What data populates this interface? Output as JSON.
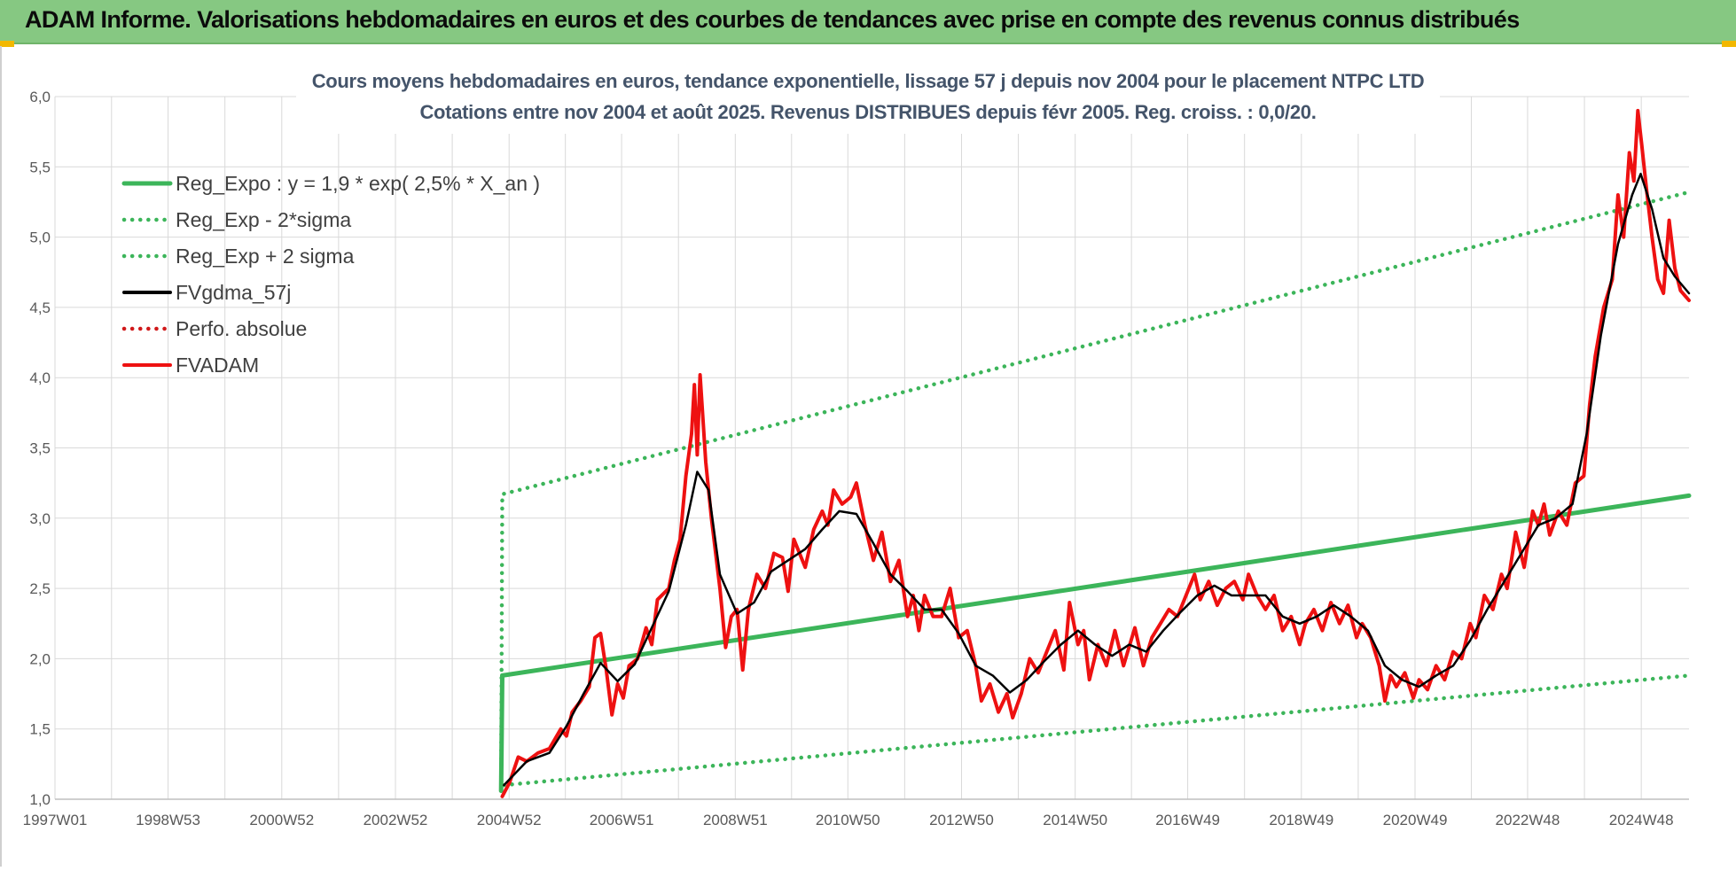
{
  "banner": {
    "title": "ADAM Informe. Valorisations hebdomadaires en euros et des courbes de tendances avec prise en compte des revenus connus distribués"
  },
  "colors": {
    "banner_bg": "#86c882",
    "regression": "#3cb55a",
    "fv_adam": "#ee1111",
    "smoothed": "#000000",
    "perfo": "#d0191a"
  },
  "chart_data": {
    "type": "line",
    "title_line1": "Cours moyens hebdomadaires en euros, tendance exponentielle, lissage 57 j depuis nov 2004 pour le placement NTPC LTD",
    "title_line2": "Cotations entre nov 2004 et août 2025.  Revenus DISTRIBUES depuis févr 2005.  Reg. croiss. : 0,0/20.",
    "xlim": [
      1997.0,
      2025.75
    ],
    "ylim": [
      1.0,
      6.0
    ],
    "x_ticks": [
      {
        "x": 1997.0,
        "label": "1997W01"
      },
      {
        "x": 1998.99,
        "label": "1998W53"
      },
      {
        "x": 2000.99,
        "label": "2000W52"
      },
      {
        "x": 2002.99,
        "label": "2002W52"
      },
      {
        "x": 2004.99,
        "label": "2004W52"
      },
      {
        "x": 2006.97,
        "label": "2006W51"
      },
      {
        "x": 2008.97,
        "label": "2008W51"
      },
      {
        "x": 2010.95,
        "label": "2010W50"
      },
      {
        "x": 2012.95,
        "label": "2012W50"
      },
      {
        "x": 2014.95,
        "label": "2014W50"
      },
      {
        "x": 2016.93,
        "label": "2016W49"
      },
      {
        "x": 2018.93,
        "label": "2018W49"
      },
      {
        "x": 2020.93,
        "label": "2020W49"
      },
      {
        "x": 2022.91,
        "label": "2022W48"
      },
      {
        "x": 2024.91,
        "label": "2024W48"
      }
    ],
    "y_ticks": [
      {
        "y": 1.0,
        "label": "1,0"
      },
      {
        "y": 1.5,
        "label": "1,5"
      },
      {
        "y": 2.0,
        "label": "2,0"
      },
      {
        "y": 2.5,
        "label": "2,5"
      },
      {
        "y": 3.0,
        "label": "3,0"
      },
      {
        "y": 3.5,
        "label": "3,5"
      },
      {
        "y": 4.0,
        "label": "4,0"
      },
      {
        "y": 4.5,
        "label": "4,5"
      },
      {
        "y": 5.0,
        "label": "5,0"
      },
      {
        "y": 5.5,
        "label": "5,5"
      },
      {
        "y": 6.0,
        "label": "6,0"
      }
    ],
    "legend_position": "top-left",
    "grid": true,
    "series": [
      {
        "name": "Reg_Expo : y = 1,9 * exp( 2,5% *  X_an )",
        "style": "solid-thick",
        "color": "#3cb55a",
        "points": [
          [
            2004.85,
            1.06
          ],
          [
            2004.87,
            1.88
          ],
          [
            2025.75,
            3.16
          ]
        ]
      },
      {
        "name": "Reg_Exp - 2*sigma",
        "style": "dotted",
        "color": "#3cb55a",
        "points": [
          [
            2004.9,
            1.1
          ],
          [
            2025.75,
            1.88
          ]
        ]
      },
      {
        "name": "Reg_Exp + 2 sigma",
        "style": "dotted",
        "color": "#3cb55a",
        "points": [
          [
            2004.85,
            1.06
          ],
          [
            2004.87,
            3.17
          ],
          [
            2025.75,
            5.32
          ]
        ]
      },
      {
        "name": "FVgdma_57j",
        "style": "solid",
        "color": "#000000",
        "points": [
          [
            2004.9,
            1.1
          ],
          [
            2005.3,
            1.27
          ],
          [
            2005.7,
            1.33
          ],
          [
            2006.0,
            1.52
          ],
          [
            2006.3,
            1.75
          ],
          [
            2006.6,
            1.97
          ],
          [
            2006.9,
            1.84
          ],
          [
            2007.2,
            1.96
          ],
          [
            2007.5,
            2.22
          ],
          [
            2007.8,
            2.48
          ],
          [
            2008.1,
            2.95
          ],
          [
            2008.3,
            3.33
          ],
          [
            2008.5,
            3.2
          ],
          [
            2008.7,
            2.6
          ],
          [
            2009.0,
            2.32
          ],
          [
            2009.3,
            2.4
          ],
          [
            2009.6,
            2.62
          ],
          [
            2009.9,
            2.7
          ],
          [
            2010.2,
            2.78
          ],
          [
            2010.5,
            2.92
          ],
          [
            2010.8,
            3.05
          ],
          [
            2011.1,
            3.03
          ],
          [
            2011.4,
            2.82
          ],
          [
            2011.7,
            2.6
          ],
          [
            2012.0,
            2.48
          ],
          [
            2012.3,
            2.35
          ],
          [
            2012.6,
            2.35
          ],
          [
            2012.9,
            2.18
          ],
          [
            2013.2,
            1.95
          ],
          [
            2013.5,
            1.88
          ],
          [
            2013.8,
            1.76
          ],
          [
            2014.1,
            1.85
          ],
          [
            2014.4,
            1.98
          ],
          [
            2014.7,
            2.1
          ],
          [
            2015.0,
            2.2
          ],
          [
            2015.3,
            2.1
          ],
          [
            2015.6,
            2.02
          ],
          [
            2015.9,
            2.1
          ],
          [
            2016.2,
            2.05
          ],
          [
            2016.5,
            2.2
          ],
          [
            2016.8,
            2.33
          ],
          [
            2017.1,
            2.45
          ],
          [
            2017.4,
            2.52
          ],
          [
            2017.7,
            2.45
          ],
          [
            2018.0,
            2.45
          ],
          [
            2018.3,
            2.45
          ],
          [
            2018.6,
            2.3
          ],
          [
            2018.9,
            2.25
          ],
          [
            2019.2,
            2.3
          ],
          [
            2019.5,
            2.38
          ],
          [
            2019.8,
            2.3
          ],
          [
            2020.1,
            2.2
          ],
          [
            2020.4,
            1.95
          ],
          [
            2020.7,
            1.85
          ],
          [
            2021.0,
            1.8
          ],
          [
            2021.3,
            1.88
          ],
          [
            2021.6,
            1.95
          ],
          [
            2021.9,
            2.13
          ],
          [
            2022.2,
            2.35
          ],
          [
            2022.5,
            2.55
          ],
          [
            2022.8,
            2.75
          ],
          [
            2023.1,
            2.95
          ],
          [
            2023.4,
            3.0
          ],
          [
            2023.7,
            3.1
          ],
          [
            2023.95,
            3.6
          ],
          [
            2024.2,
            4.3
          ],
          [
            2024.5,
            4.95
          ],
          [
            2024.75,
            5.3
          ],
          [
            2024.9,
            5.45
          ],
          [
            2025.1,
            5.2
          ],
          [
            2025.3,
            4.85
          ],
          [
            2025.5,
            4.72
          ],
          [
            2025.75,
            4.6
          ]
        ]
      },
      {
        "name": "Perfo. absolue",
        "style": "dotted",
        "color": "#d0191a",
        "points": []
      },
      {
        "name": "FVADAM",
        "style": "solid-thick",
        "color": "#ee1111",
        "points": [
          [
            2004.87,
            1.02
          ],
          [
            2005.0,
            1.12
          ],
          [
            2005.15,
            1.3
          ],
          [
            2005.3,
            1.27
          ],
          [
            2005.5,
            1.33
          ],
          [
            2005.7,
            1.36
          ],
          [
            2005.9,
            1.5
          ],
          [
            2006.0,
            1.45
          ],
          [
            2006.1,
            1.62
          ],
          [
            2006.25,
            1.7
          ],
          [
            2006.4,
            1.8
          ],
          [
            2006.5,
            2.15
          ],
          [
            2006.6,
            2.18
          ],
          [
            2006.7,
            1.92
          ],
          [
            2006.8,
            1.6
          ],
          [
            2006.9,
            1.82
          ],
          [
            2007.0,
            1.72
          ],
          [
            2007.1,
            1.95
          ],
          [
            2007.25,
            2.0
          ],
          [
            2007.4,
            2.22
          ],
          [
            2007.5,
            2.1
          ],
          [
            2007.6,
            2.42
          ],
          [
            2007.8,
            2.5
          ],
          [
            2007.9,
            2.7
          ],
          [
            2008.0,
            2.85
          ],
          [
            2008.1,
            3.3
          ],
          [
            2008.2,
            3.6
          ],
          [
            2008.25,
            3.95
          ],
          [
            2008.3,
            3.45
          ],
          [
            2008.35,
            4.02
          ],
          [
            2008.45,
            3.4
          ],
          [
            2008.55,
            3.0
          ],
          [
            2008.7,
            2.5
          ],
          [
            2008.8,
            2.08
          ],
          [
            2008.9,
            2.3
          ],
          [
            2009.0,
            2.35
          ],
          [
            2009.1,
            1.92
          ],
          [
            2009.2,
            2.35
          ],
          [
            2009.35,
            2.6
          ],
          [
            2009.5,
            2.5
          ],
          [
            2009.65,
            2.75
          ],
          [
            2009.8,
            2.72
          ],
          [
            2009.9,
            2.48
          ],
          [
            2010.0,
            2.85
          ],
          [
            2010.2,
            2.65
          ],
          [
            2010.35,
            2.92
          ],
          [
            2010.5,
            3.05
          ],
          [
            2010.6,
            2.95
          ],
          [
            2010.7,
            3.2
          ],
          [
            2010.85,
            3.1
          ],
          [
            2011.0,
            3.15
          ],
          [
            2011.1,
            3.25
          ],
          [
            2011.25,
            2.95
          ],
          [
            2011.4,
            2.7
          ],
          [
            2011.55,
            2.9
          ],
          [
            2011.7,
            2.55
          ],
          [
            2011.85,
            2.7
          ],
          [
            2012.0,
            2.3
          ],
          [
            2012.1,
            2.45
          ],
          [
            2012.2,
            2.2
          ],
          [
            2012.3,
            2.45
          ],
          [
            2012.45,
            2.3
          ],
          [
            2012.6,
            2.3
          ],
          [
            2012.75,
            2.5
          ],
          [
            2012.9,
            2.15
          ],
          [
            2013.05,
            2.2
          ],
          [
            2013.2,
            1.95
          ],
          [
            2013.3,
            1.7
          ],
          [
            2013.45,
            1.82
          ],
          [
            2013.6,
            1.62
          ],
          [
            2013.75,
            1.75
          ],
          [
            2013.85,
            1.58
          ],
          [
            2014.0,
            1.75
          ],
          [
            2014.15,
            2.0
          ],
          [
            2014.3,
            1.9
          ],
          [
            2014.45,
            2.05
          ],
          [
            2014.6,
            2.2
          ],
          [
            2014.75,
            1.92
          ],
          [
            2014.85,
            2.4
          ],
          [
            2015.0,
            2.1
          ],
          [
            2015.1,
            2.2
          ],
          [
            2015.2,
            1.85
          ],
          [
            2015.35,
            2.1
          ],
          [
            2015.5,
            1.95
          ],
          [
            2015.65,
            2.2
          ],
          [
            2015.8,
            1.95
          ],
          [
            2016.0,
            2.22
          ],
          [
            2016.15,
            1.95
          ],
          [
            2016.3,
            2.15
          ],
          [
            2016.45,
            2.25
          ],
          [
            2016.6,
            2.35
          ],
          [
            2016.75,
            2.3
          ],
          [
            2016.9,
            2.45
          ],
          [
            2017.05,
            2.6
          ],
          [
            2017.15,
            2.42
          ],
          [
            2017.3,
            2.55
          ],
          [
            2017.45,
            2.38
          ],
          [
            2017.6,
            2.5
          ],
          [
            2017.75,
            2.55
          ],
          [
            2017.9,
            2.42
          ],
          [
            2018.0,
            2.6
          ],
          [
            2018.15,
            2.45
          ],
          [
            2018.3,
            2.35
          ],
          [
            2018.45,
            2.45
          ],
          [
            2018.6,
            2.2
          ],
          [
            2018.75,
            2.3
          ],
          [
            2018.9,
            2.1
          ],
          [
            2019.0,
            2.25
          ],
          [
            2019.15,
            2.35
          ],
          [
            2019.3,
            2.2
          ],
          [
            2019.45,
            2.4
          ],
          [
            2019.6,
            2.25
          ],
          [
            2019.75,
            2.38
          ],
          [
            2019.9,
            2.15
          ],
          [
            2020.0,
            2.25
          ],
          [
            2020.15,
            2.15
          ],
          [
            2020.3,
            1.95
          ],
          [
            2020.4,
            1.7
          ],
          [
            2020.5,
            1.88
          ],
          [
            2020.6,
            1.8
          ],
          [
            2020.75,
            1.9
          ],
          [
            2020.9,
            1.72
          ],
          [
            2021.0,
            1.85
          ],
          [
            2021.15,
            1.78
          ],
          [
            2021.3,
            1.95
          ],
          [
            2021.45,
            1.85
          ],
          [
            2021.6,
            2.05
          ],
          [
            2021.75,
            2.0
          ],
          [
            2021.9,
            2.25
          ],
          [
            2022.0,
            2.15
          ],
          [
            2022.15,
            2.45
          ],
          [
            2022.3,
            2.35
          ],
          [
            2022.45,
            2.6
          ],
          [
            2022.55,
            2.5
          ],
          [
            2022.7,
            2.9
          ],
          [
            2022.85,
            2.65
          ],
          [
            2023.0,
            3.05
          ],
          [
            2023.1,
            2.95
          ],
          [
            2023.2,
            3.1
          ],
          [
            2023.3,
            2.88
          ],
          [
            2023.45,
            3.05
          ],
          [
            2023.6,
            2.95
          ],
          [
            2023.75,
            3.25
          ],
          [
            2023.9,
            3.3
          ],
          [
            2024.0,
            3.8
          ],
          [
            2024.1,
            4.15
          ],
          [
            2024.25,
            4.5
          ],
          [
            2024.4,
            4.7
          ],
          [
            2024.5,
            5.3
          ],
          [
            2024.6,
            5.0
          ],
          [
            2024.7,
            5.6
          ],
          [
            2024.78,
            5.4
          ],
          [
            2024.85,
            5.9
          ],
          [
            2024.92,
            5.65
          ],
          [
            2025.0,
            5.35
          ],
          [
            2025.1,
            5.0
          ],
          [
            2025.2,
            4.7
          ],
          [
            2025.3,
            4.6
          ],
          [
            2025.4,
            5.12
          ],
          [
            2025.5,
            4.78
          ],
          [
            2025.6,
            4.62
          ],
          [
            2025.75,
            4.55
          ]
        ]
      }
    ]
  }
}
